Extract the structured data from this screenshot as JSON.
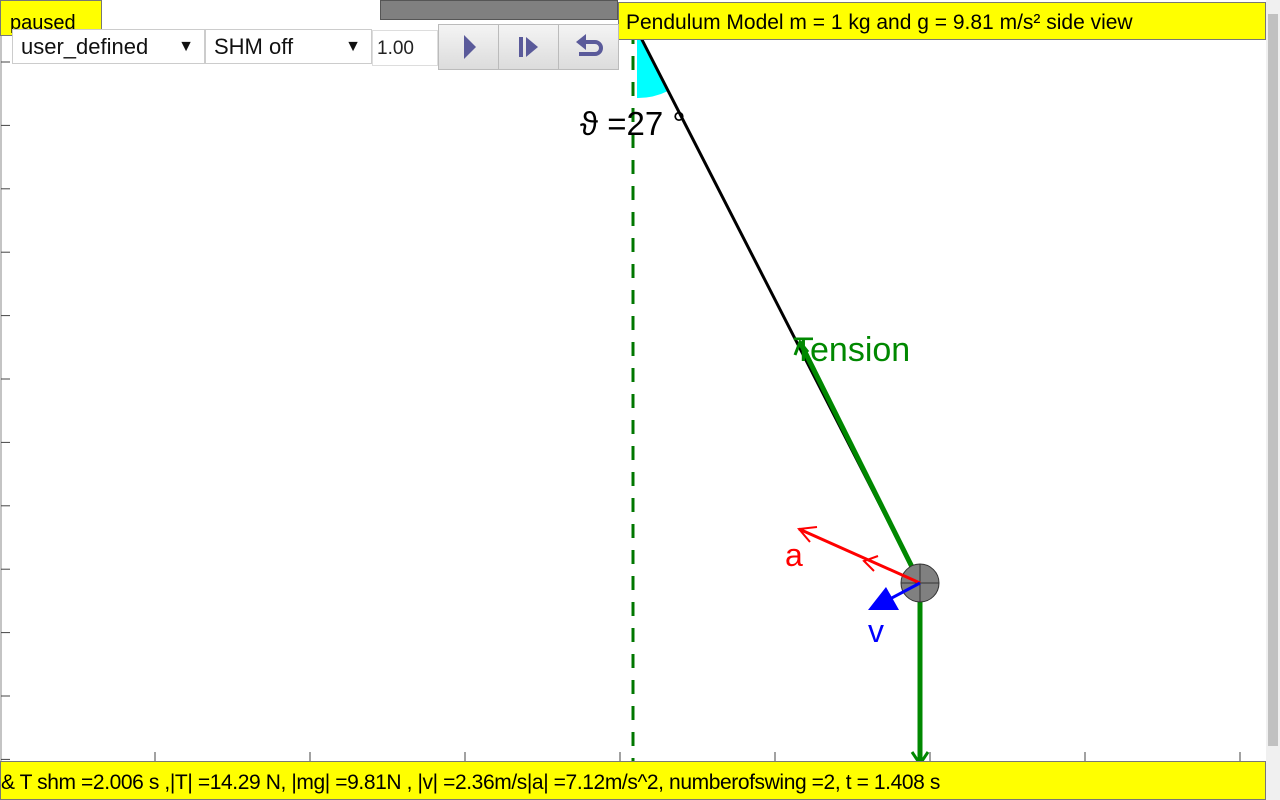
{
  "status_badge": "paused",
  "title": "Pendulum Model m = 1 kg and g = 9.81 m/s² side view",
  "controls": {
    "model_select": {
      "value": "user_defined",
      "arrow": "▼"
    },
    "shm_select": {
      "value": "SHM off",
      "arrow": "▼"
    },
    "rate_input": "1.00",
    "buttons": [
      {
        "icon": "play-icon"
      },
      {
        "icon": "step-icon"
      },
      {
        "icon": "reset-icon"
      }
    ]
  },
  "scene": {
    "angle_label": "ϑ =27 °",
    "angle_deg": 27,
    "tension_label": "Tension",
    "accel_label": "a",
    "velocity_label": "v",
    "colors": {
      "tension": "#008800",
      "accel": "#ff0000",
      "velocity": "#0000ff",
      "angle_fill": "#00ffff",
      "bob": "#808080",
      "panel": "#ffff00"
    }
  },
  "status_line": "& T shm =2.006 s ,|T| =14.29 N, |mg| =9.81N , |v| =2.36m/s|a| =7.12m/s^2, numberofswing =2, t = 1.408 s"
}
